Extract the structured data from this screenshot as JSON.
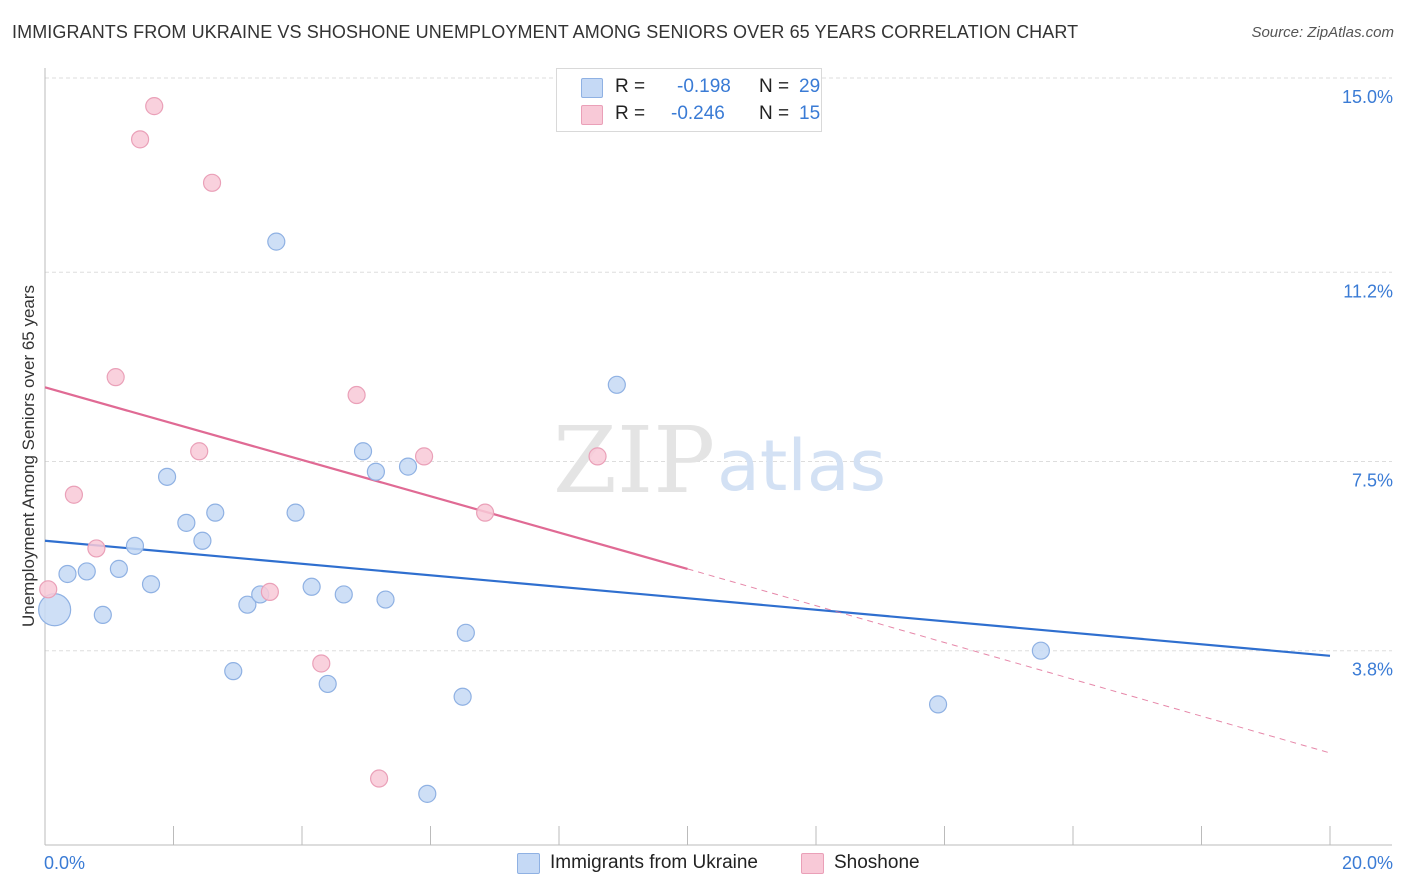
{
  "header": {
    "title": "IMMIGRANTS FROM UKRAINE VS SHOSHONE UNEMPLOYMENT AMONG SENIORS OVER 65 YEARS CORRELATION CHART",
    "source": "Source: ZipAtlas.com"
  },
  "watermark": {
    "zip": "ZIP",
    "atlas": "atlas"
  },
  "legend": {
    "rows": [
      {
        "r_label": "R =",
        "r_value": "-0.198",
        "n_label": "N =",
        "n_value": "29"
      },
      {
        "r_label": "R =",
        "r_value": "-0.246",
        "n_label": "N =",
        "n_value": "15"
      }
    ]
  },
  "bottom_legend": {
    "series1": "Immigrants from Ukraine",
    "series2": "Shoshone"
  },
  "colors": {
    "blue_fill": "#c5d9f5",
    "blue_stroke": "#8fb1e3",
    "blue_line": "#2f6fcf",
    "pink_fill": "#f8c9d7",
    "pink_stroke": "#eaa0b8",
    "pink_line": "#e06a94",
    "tick_text": "#3a7bd5"
  },
  "chart_data": {
    "type": "scatter",
    "title": "IMMIGRANTS FROM UKRAINE VS SHOSHONE UNEMPLOYMENT AMONG SENIORS OVER 65 YEARS CORRELATION CHART",
    "xlabel": "",
    "ylabel": "Unemployment Among Seniors over 65 years",
    "xlim": [
      0,
      20
    ],
    "ylim": [
      0,
      15.4
    ],
    "x_tick_labels": [
      "0.0%",
      "20.0%"
    ],
    "y_ticks": [
      3.8,
      7.5,
      11.2,
      15.0
    ],
    "y_tick_labels": [
      "3.8%",
      "7.5%",
      "11.2%",
      "15.0%"
    ],
    "series": [
      {
        "name": "Immigrants from Ukraine",
        "R": -0.198,
        "N": 29,
        "points": [
          {
            "x": 0.15,
            "y": 4.6,
            "size": "large"
          },
          {
            "x": 0.35,
            "y": 5.3
          },
          {
            "x": 0.65,
            "y": 5.35
          },
          {
            "x": 0.9,
            "y": 4.5
          },
          {
            "x": 1.15,
            "y": 5.4
          },
          {
            "x": 1.4,
            "y": 5.85
          },
          {
            "x": 1.65,
            "y": 5.1
          },
          {
            "x": 1.9,
            "y": 7.2
          },
          {
            "x": 2.2,
            "y": 6.3
          },
          {
            "x": 2.45,
            "y": 5.95
          },
          {
            "x": 2.65,
            "y": 6.5
          },
          {
            "x": 2.93,
            "y": 3.4
          },
          {
            "x": 3.15,
            "y": 4.7
          },
          {
            "x": 3.35,
            "y": 4.9
          },
          {
            "x": 3.6,
            "y": 11.8
          },
          {
            "x": 3.9,
            "y": 6.5
          },
          {
            "x": 4.15,
            "y": 5.05
          },
          {
            "x": 4.4,
            "y": 3.15
          },
          {
            "x": 4.65,
            "y": 4.9
          },
          {
            "x": 4.95,
            "y": 7.7
          },
          {
            "x": 5.15,
            "y": 7.3
          },
          {
            "x": 5.3,
            "y": 4.8
          },
          {
            "x": 5.65,
            "y": 7.4
          },
          {
            "x": 5.95,
            "y": 1.0
          },
          {
            "x": 6.5,
            "y": 2.9
          },
          {
            "x": 6.55,
            "y": 4.15
          },
          {
            "x": 8.9,
            "y": 9.0
          },
          {
            "x": 13.9,
            "y": 2.75
          },
          {
            "x": 15.5,
            "y": 3.8
          }
        ],
        "trend": {
          "x0": 0,
          "y0": 5.95,
          "x1": 20,
          "y1": 3.7
        }
      },
      {
        "name": "Shoshone",
        "R": -0.246,
        "N": 15,
        "points": [
          {
            "x": 0.05,
            "y": 5.0
          },
          {
            "x": 0.45,
            "y": 6.85
          },
          {
            "x": 0.8,
            "y": 5.8
          },
          {
            "x": 1.1,
            "y": 9.15
          },
          {
            "x": 1.48,
            "y": 13.8
          },
          {
            "x": 1.7,
            "y": 14.45
          },
          {
            "x": 2.4,
            "y": 7.7
          },
          {
            "x": 2.6,
            "y": 12.95
          },
          {
            "x": 3.5,
            "y": 4.95
          },
          {
            "x": 4.3,
            "y": 3.55
          },
          {
            "x": 4.85,
            "y": 8.8
          },
          {
            "x": 5.2,
            "y": 1.3
          },
          {
            "x": 5.9,
            "y": 7.6
          },
          {
            "x": 6.85,
            "y": 6.5
          },
          {
            "x": 8.6,
            "y": 7.6
          }
        ],
        "trend": {
          "x0": 0,
          "y0": 8.95,
          "x1": 10,
          "y1": 5.4,
          "x_dashed_end": 20,
          "y_dashed_end": 1.8
        }
      }
    ]
  }
}
